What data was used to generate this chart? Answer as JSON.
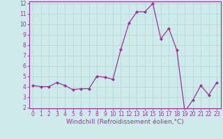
{
  "x": [
    0,
    1,
    2,
    3,
    4,
    5,
    6,
    7,
    8,
    9,
    10,
    11,
    12,
    13,
    14,
    15,
    16,
    17,
    18,
    19,
    20,
    21,
    22,
    23
  ],
  "y": [
    4.1,
    4.0,
    4.0,
    4.4,
    4.1,
    3.7,
    3.8,
    3.8,
    5.0,
    4.9,
    4.7,
    7.6,
    10.1,
    11.2,
    11.2,
    12.0,
    8.6,
    9.6,
    7.5,
    1.6,
    2.7,
    4.1,
    3.2,
    4.4
  ],
  "line_color": "#993399",
  "marker": "D",
  "marker_size": 2.0,
  "xlabel": "Windchill (Refroidissement éolien,°C)",
  "xlabel_fontsize": 6.5,
  "background_color": "#ceeaea",
  "grid_color": "#b8dada",
  "ylim": [
    1.9,
    12.2
  ],
  "yticks": [
    2,
    3,
    4,
    5,
    6,
    7,
    8,
    9,
    10,
    11,
    12
  ],
  "xticks": [
    0,
    1,
    2,
    3,
    4,
    5,
    6,
    7,
    8,
    9,
    10,
    11,
    12,
    13,
    14,
    15,
    16,
    17,
    18,
    19,
    20,
    21,
    22,
    23
  ],
  "tick_fontsize": 5.5,
  "tick_color": "#993399",
  "spine_color": "#993399",
  "linewidth": 0.9
}
